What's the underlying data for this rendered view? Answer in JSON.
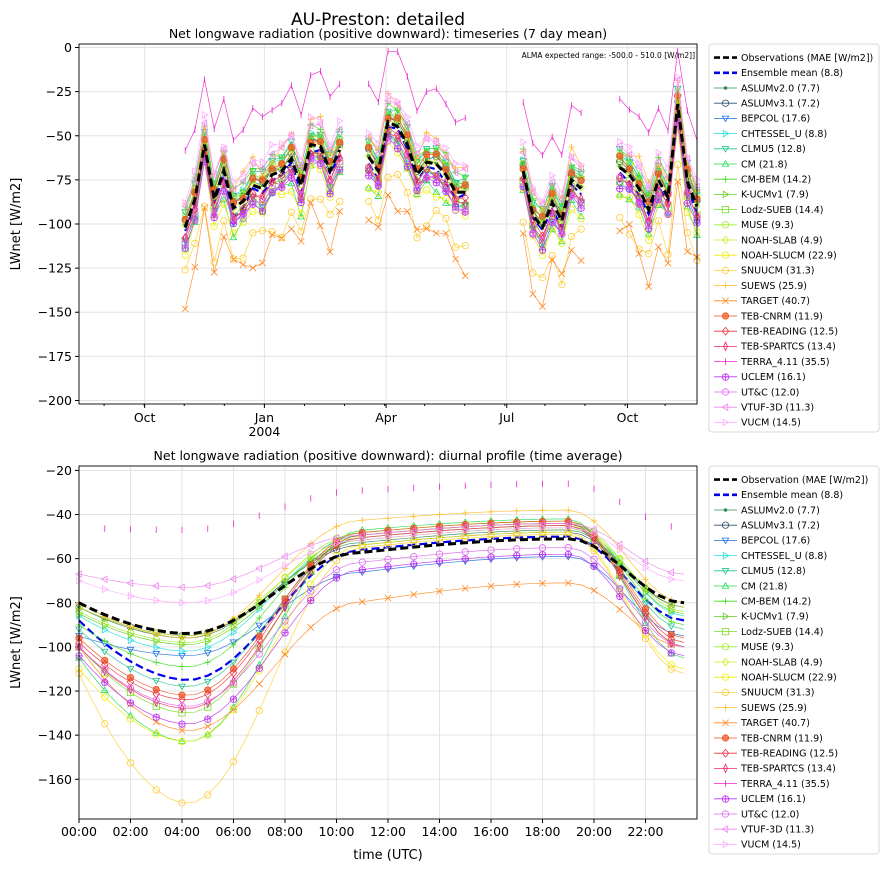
{
  "figure_title": "AU-Preston: detailed",
  "chart_data": [
    {
      "type": "line",
      "title": "Net longwave radiation (positive downward): timeseries (7 day mean)",
      "xlabel": "",
      "ylabel": "LWnet [W/m2]",
      "ylim": [
        -202,
        2
      ],
      "yticks": [
        0,
        -25,
        -50,
        -75,
        -100,
        -125,
        -150,
        -175,
        -200
      ],
      "xticks": [
        "Oct",
        "Jan",
        "Apr",
        "Jul",
        "Oct"
      ],
      "xtick_year": "2004",
      "annotation": "ALMA expected range: -500.0 - 510.0 [W/m2]]",
      "grid": true,
      "legend_position": "outside-right",
      "x_week_range": [
        0,
        64
      ],
      "segments": [
        [
          11,
          27
        ],
        [
          30,
          40
        ],
        [
          46,
          52
        ],
        [
          56,
          64
        ]
      ],
      "observation_weekly": [
        -92,
        -100,
        -92,
        -64,
        -112,
        -100,
        -95,
        -110,
        -93,
        -103,
        -110,
        -102,
        -86,
        -55,
        -86,
        -70,
        -91,
        -87,
        -78,
        -80,
        -72,
        -70,
        -63,
        -78,
        -55,
        -56,
        -70,
        -58,
        -60,
        -53,
        -62,
        -70,
        -42,
        -45,
        -55,
        -72,
        -65,
        -66,
        -72,
        -82,
        -82,
        -80,
        -75,
        -84,
        -78,
        -30,
        -70,
        -95,
        -102,
        -88,
        -98,
        -75,
        -80,
        -85,
        -82,
        -90,
        -68,
        -72,
        -80,
        -92,
        -75,
        -85,
        -32,
        -76,
        -90
      ],
      "series": [
        {
          "name": "Observations (MAE [W/m2])",
          "color": "#000000",
          "style": "dash",
          "bias": 0,
          "amp": 0
        },
        {
          "name": "Ensemble mean (8.8)",
          "color": "#0000ee",
          "style": "dash",
          "bias": -3,
          "amp": 2
        },
        {
          "name": "ASLUMv2.0 (7.7)",
          "color": "#2e8b57",
          "marker": "dot",
          "bias": 2,
          "amp": 2
        },
        {
          "name": "ASLUMv3.1 (7.2)",
          "color": "#2f4f6f",
          "marker": "circle",
          "bias": 3,
          "amp": 2
        },
        {
          "name": "BEPCOL (17.6)",
          "color": "#1e6fe0",
          "marker": "tri-down",
          "bias": -8,
          "amp": 3
        },
        {
          "name": "CHTESSEL_U (8.8)",
          "color": "#20e0e0",
          "marker": "tri-right",
          "bias": 6,
          "amp": 2
        },
        {
          "name": "CLMU5 (12.8)",
          "color": "#20c090",
          "marker": "tri-down-small",
          "bias": 8,
          "amp": 3
        },
        {
          "name": "CM (21.8)",
          "color": "#22dd55",
          "marker": "tri-up",
          "bias": -12,
          "amp": 6
        },
        {
          "name": "CM-BEM (14.2)",
          "color": "#44dd22",
          "marker": "plus",
          "bias": 10,
          "amp": 3
        },
        {
          "name": "K-UCMv1 (7.9)",
          "color": "#66cc22",
          "marker": "tri-right-small",
          "bias": 5,
          "amp": 2
        },
        {
          "name": "Lodz-SUEB (14.4)",
          "color": "#77dd22",
          "marker": "square",
          "bias": -6,
          "amp": 4
        },
        {
          "name": "MUSE (9.3)",
          "color": "#99ee22",
          "marker": "octagon",
          "bias": 5,
          "amp": 2
        },
        {
          "name": "NOAH-SLAB (4.9)",
          "color": "#ccee22",
          "marker": "diamond",
          "bias": 1,
          "amp": 1
        },
        {
          "name": "NOAH-SLUCM (22.9)",
          "color": "#eeee00",
          "marker": "pentagon",
          "bias": -14,
          "amp": 5
        },
        {
          "name": "SNUUCM (31.3)",
          "color": "#ffcc33",
          "marker": "hexagon",
          "bias": -30,
          "amp": 8
        },
        {
          "name": "SUEWS (25.9)",
          "color": "#ffbb22",
          "marker": "plus",
          "bias": 12,
          "amp": 7
        },
        {
          "name": "TARGET (40.7)",
          "color": "#ff8822",
          "marker": "x",
          "bias": -38,
          "amp": 10
        },
        {
          "name": "TEB-CNRM (11.9)",
          "color": "#ee5522",
          "marker": "circle-filled",
          "bias": 4,
          "amp": 3
        },
        {
          "name": "TEB-READING (12.5)",
          "color": "#ee3344",
          "marker": "diamond",
          "bias": -5,
          "amp": 3
        },
        {
          "name": "TEB-SPARTCS (13.4)",
          "color": "#ee2266",
          "marker": "thin-diamond",
          "bias": -6,
          "amp": 3
        },
        {
          "name": "TERRA_4.11 (35.5)",
          "color": "#ee22cc",
          "marker": "vline",
          "bias": 40,
          "amp": 4
        },
        {
          "name": "UCLEM (16.1)",
          "color": "#bb33ee",
          "marker": "plus-circle",
          "bias": -10,
          "amp": 3
        },
        {
          "name": "UT&C (12.0)",
          "color": "#dd66ee",
          "marker": "octagon",
          "bias": -8,
          "amp": 3
        },
        {
          "name": "VTUF-3D (11.3)",
          "color": "#ee88ee",
          "marker": "tri-left",
          "bias": 12,
          "amp": 2
        },
        {
          "name": "VUCM (14.5)",
          "color": "#ffaaff",
          "marker": "tri-right",
          "bias": 15,
          "amp": 2
        }
      ]
    },
    {
      "type": "line",
      "title": "Net longwave radiation (positive downward): diurnal profile (time average)",
      "xlabel": "time (UTC)",
      "ylabel": "LWnet [W/m2]",
      "ylim": [
        -178,
        -18
      ],
      "yticks": [
        -20,
        -40,
        -60,
        -80,
        -100,
        -120,
        -140,
        -160
      ],
      "xticks": [
        "00:00",
        "02:00",
        "04:00",
        "06:00",
        "08:00",
        "10:00",
        "12:00",
        "14:00",
        "16:00",
        "18:00",
        "20:00",
        "22:00"
      ],
      "x_hours_range": [
        0,
        24
      ],
      "grid": true,
      "legend_position": "outside-right",
      "series": [
        {
          "name": "Observation (MAE [W/m2])",
          "color": "#000000",
          "style": "dash",
          "night": -94,
          "day": -51,
          "start": -80
        },
        {
          "name": "Ensemble mean (8.8)",
          "color": "#0000ee",
          "style": "dash",
          "night": -115,
          "day": -50,
          "start": -88
        },
        {
          "name": "ASLUMv2.0 (7.7)",
          "color": "#2e8b57",
          "marker": "dot",
          "night": -96,
          "day": -47,
          "start": -82
        },
        {
          "name": "ASLUMv3.1 (7.2)",
          "color": "#2f4f6f",
          "marker": "circle",
          "night": -95,
          "day": -48,
          "start": -82
        },
        {
          "name": "BEPCOL (17.6)",
          "color": "#1e6fe0",
          "marker": "tri-down",
          "night": -104,
          "day": -59,
          "start": -95
        },
        {
          "name": "CHTESSEL_U (8.8)",
          "color": "#20e0e0",
          "marker": "tri-right",
          "night": -102,
          "day": -44,
          "start": -86
        },
        {
          "name": "CLMU5 (12.8)",
          "color": "#20c090",
          "marker": "tri-down-small",
          "night": -118,
          "day": -45,
          "start": -92
        },
        {
          "name": "CM (21.8)",
          "color": "#22dd55",
          "marker": "tri-up",
          "night": -143,
          "day": -42,
          "start": -105
        },
        {
          "name": "CM-BEM (14.2)",
          "color": "#44dd22",
          "marker": "plus",
          "night": -109,
          "day": -43,
          "start": -90
        },
        {
          "name": "K-UCMv1 (7.9)",
          "color": "#66cc22",
          "marker": "tri-right-small",
          "night": -99,
          "day": -46,
          "start": -85
        },
        {
          "name": "Lodz-SUEB (14.4)",
          "color": "#77dd22",
          "marker": "square",
          "night": -130,
          "day": -44,
          "start": -100
        },
        {
          "name": "MUSE (9.3)",
          "color": "#99ee22",
          "marker": "octagon",
          "night": -98,
          "day": -43,
          "start": -84
        },
        {
          "name": "NOAH-SLAB (4.9)",
          "color": "#ccee22",
          "marker": "diamond",
          "night": -95,
          "day": -45,
          "start": -82
        },
        {
          "name": "NOAH-SLUCM (22.9)",
          "color": "#eeee00",
          "marker": "pentagon",
          "night": -143,
          "day": -48,
          "start": -110
        },
        {
          "name": "SNUUCM (31.3)",
          "color": "#ffcc33",
          "marker": "hexagon",
          "night": -171,
          "day": -49,
          "start": -112
        },
        {
          "name": "SUEWS (25.9)",
          "color": "#ffbb22",
          "marker": "plus",
          "night": -96,
          "day": -38,
          "start": -80
        },
        {
          "name": "TARGET (40.7)",
          "color": "#ff8822",
          "marker": "x",
          "night": -138,
          "day": -71,
          "start": -100
        },
        {
          "name": "TEB-CNRM (11.9)",
          "color": "#ee5522",
          "marker": "circle-filled",
          "night": -122,
          "day": -43,
          "start": -96
        },
        {
          "name": "TEB-READING (12.5)",
          "color": "#ee3344",
          "marker": "diamond",
          "night": -124,
          "day": -44,
          "start": -98
        },
        {
          "name": "TEB-SPARTCS (13.4)",
          "color": "#ee2266",
          "marker": "thin-diamond",
          "night": -128,
          "day": -45,
          "start": -100
        },
        {
          "name": "TERRA_4.11 (35.5)",
          "color": "#ee22cc",
          "marker": "vline",
          "night": -47,
          "day": -26,
          "start": -46
        },
        {
          "name": "UCLEM (16.1)",
          "color": "#bb33ee",
          "marker": "plus-circle",
          "night": -135,
          "day": -58,
          "start": -104
        },
        {
          "name": "UT&C (12.0)",
          "color": "#dd66ee",
          "marker": "octagon",
          "night": -127,
          "day": -55,
          "start": -100
        },
        {
          "name": "VTUF-3D (11.3)",
          "color": "#ee88ee",
          "marker": "tri-left",
          "night": -73,
          "day": -44,
          "start": -67
        },
        {
          "name": "VUCM (14.5)",
          "color": "#ffaaff",
          "marker": "tri-right",
          "night": -80,
          "day": -46,
          "start": -70
        }
      ]
    }
  ]
}
